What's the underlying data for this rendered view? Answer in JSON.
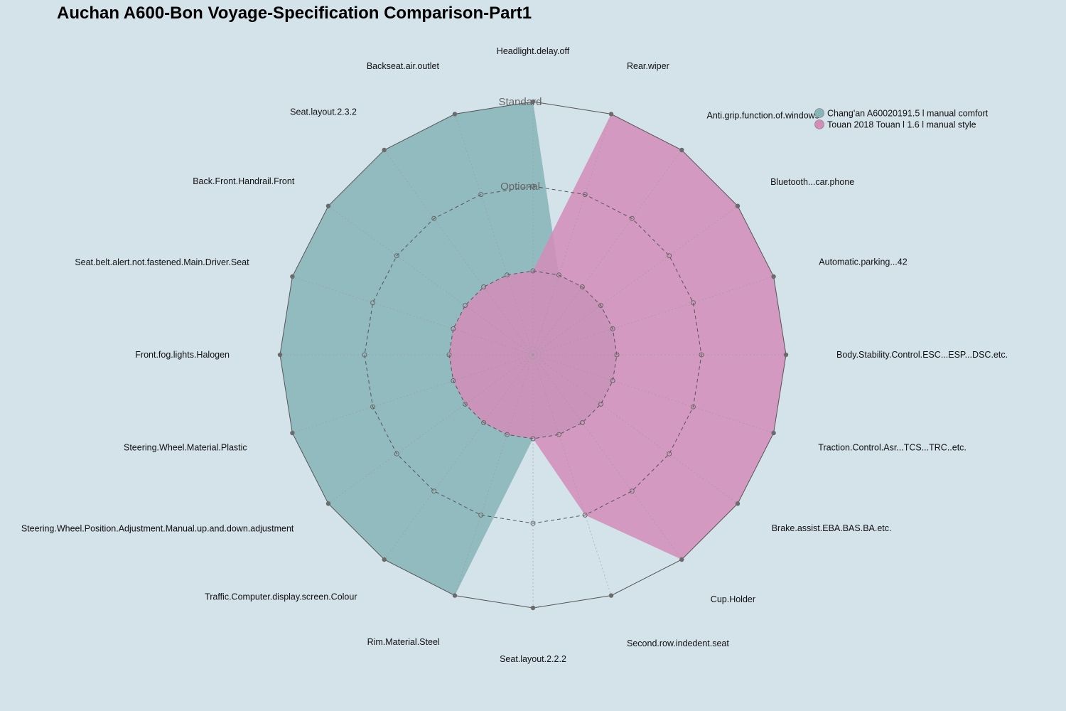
{
  "chart_data": {
    "type": "radar",
    "title": "Auchan A600-Bon Voyage-Specification Comparison-Part1",
    "levels": [
      "",
      "Optional",
      "Standard"
    ],
    "axes": [
      "Headlight.delay.off",
      "Rear.wiper",
      "Anti.grip.function.of.windows",
      "Bluetooth...car.phone",
      "Automatic.parking...42",
      "Body.Stability.Control.ESC...ESP...DSC.etc.",
      "Traction.Control.Asr...TCS...TRC..etc.",
      "Brake.assist.EBA.BAS.BA.etc.",
      "Cup.Holder",
      "Second.row.indedent.seat",
      "Seat.layout.2.2.2",
      "Rim.Material.Steel",
      "Traffic.Computer.display.screen.Colour",
      "Steering.Wheel.Position.Adjustment.Manual.up.and.down.adjustment",
      "Steering.Wheel.Material.Plastic",
      "Front.fog.lights.Halogen",
      "Seat.belt.alert.not.fastened.Main.Driver.Seat",
      "Back.Front.Handrail.Front",
      "Seat.layout.2.3.2",
      "Backseat.air.outlet"
    ],
    "series": [
      {
        "name": "Chang'an A60020191.5 l manual comfort",
        "color": "#86b4b9",
        "values": [
          2,
          0,
          0,
          0,
          0,
          0,
          0,
          0,
          0,
          0,
          0,
          2,
          2,
          2,
          2,
          2,
          2,
          2,
          2,
          2
        ]
      },
      {
        "name": "Touan 2018 Touan l 1.6 l manual style",
        "color": "#d48cb8",
        "values": [
          0,
          2,
          2,
          2,
          2,
          2,
          2,
          2,
          2,
          1,
          0,
          0,
          0,
          0,
          0,
          0,
          0,
          0,
          0,
          0
        ]
      }
    ],
    "legend": "top-right"
  }
}
